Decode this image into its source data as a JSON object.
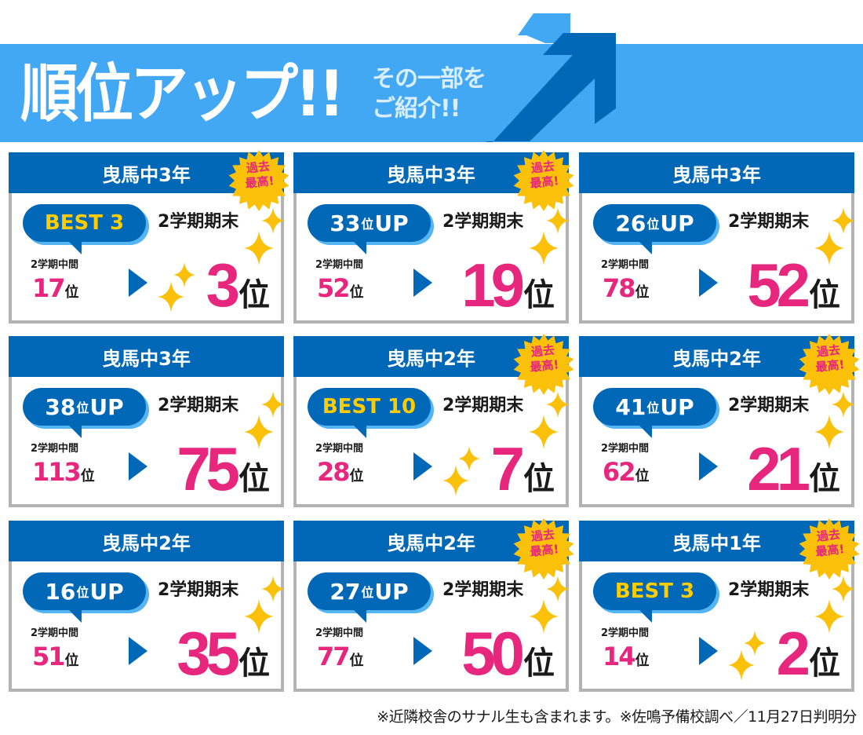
{
  "banner": {
    "title": "順位アップ!!",
    "subtitle_line1": "その一部を",
    "subtitle_line2": "ご紹介!!",
    "colors": {
      "band": "#42a8f4",
      "arrow_dark": "#0068b7",
      "arrow_light": "#42a8f4"
    }
  },
  "labels": {
    "final_term": "2学期期末",
    "mid_term": "2学期中間",
    "rank_unit": "位",
    "up_suffix": "UP",
    "record_badge_line1": "過去",
    "record_badge_line2": "最高!"
  },
  "colors": {
    "header_bg": "#0068b7",
    "rank_pink": "#e7267e",
    "best_yellow": "#ffcc00",
    "sparkle_yellow": "#fbc10a",
    "card_border": "#b3b3b3"
  },
  "cards": [
    {
      "school": "曳馬中3年",
      "record": true,
      "bubble_type": "best",
      "bubble_text": "BEST 3",
      "up_num": "",
      "mid_rank": "17",
      "final_rank": "3",
      "extra_sparkles": true
    },
    {
      "school": "曳馬中3年",
      "record": true,
      "bubble_type": "up",
      "bubble_text": "",
      "up_num": "33",
      "mid_rank": "52",
      "final_rank": "19",
      "extra_sparkles": false
    },
    {
      "school": "曳馬中3年",
      "record": false,
      "bubble_type": "up",
      "bubble_text": "",
      "up_num": "26",
      "mid_rank": "78",
      "final_rank": "52",
      "extra_sparkles": false
    },
    {
      "school": "曳馬中3年",
      "record": false,
      "bubble_type": "up",
      "bubble_text": "",
      "up_num": "38",
      "mid_rank": "113",
      "final_rank": "75",
      "extra_sparkles": false
    },
    {
      "school": "曳馬中2年",
      "record": true,
      "bubble_type": "best",
      "bubble_text": "BEST 10",
      "up_num": "",
      "mid_rank": "28",
      "final_rank": "7",
      "extra_sparkles": true
    },
    {
      "school": "曳馬中2年",
      "record": true,
      "bubble_type": "up",
      "bubble_text": "",
      "up_num": "41",
      "mid_rank": "62",
      "final_rank": "21",
      "extra_sparkles": false
    },
    {
      "school": "曳馬中2年",
      "record": false,
      "bubble_type": "up",
      "bubble_text": "",
      "up_num": "16",
      "mid_rank": "51",
      "final_rank": "35",
      "extra_sparkles": false
    },
    {
      "school": "曳馬中2年",
      "record": true,
      "bubble_type": "up",
      "bubble_text": "",
      "up_num": "27",
      "mid_rank": "77",
      "final_rank": "50",
      "extra_sparkles": false
    },
    {
      "school": "曳馬中1年",
      "record": true,
      "bubble_type": "best",
      "bubble_text": "BEST 3",
      "up_num": "",
      "mid_rank": "14",
      "final_rank": "2",
      "extra_sparkles": true
    }
  ],
  "footnote": "※近隣校舎のサナル生も含まれます。※佐鳴予備校調べ／11月27日判明分"
}
